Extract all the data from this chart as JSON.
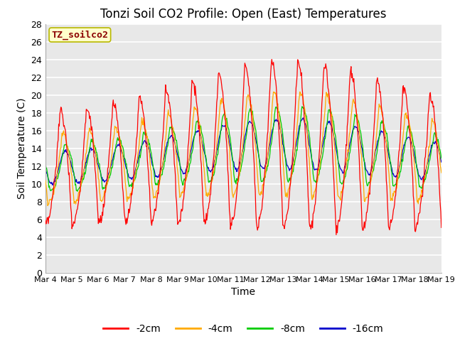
{
  "title": "Tonzi Soil CO2 Profile: Open (East) Temperatures",
  "xlabel": "Time",
  "ylabel": "Soil Temperature (C)",
  "ylim": [
    0,
    28
  ],
  "yticks": [
    0,
    2,
    4,
    6,
    8,
    10,
    12,
    14,
    16,
    18,
    20,
    22,
    24,
    26,
    28
  ],
  "x_labels": [
    "Mar 4",
    "Mar 5",
    "Mar 6",
    "Mar 7",
    "Mar 8",
    "Mar 9",
    "Mar 10",
    "Mar 11",
    "Mar 12",
    "Mar 13",
    "Mar 14",
    "Mar 15",
    "Mar 16",
    "Mar 17",
    "Mar 18",
    "Mar 19"
  ],
  "legend_label": "TZ_soilco2",
  "legend_bg": "#ffffcc",
  "legend_border": "#b8b800",
  "line_colors": [
    "#ff0000",
    "#ffaa00",
    "#00cc00",
    "#0000cc"
  ],
  "line_labels": [
    "-2cm",
    "-4cm",
    "-8cm",
    "-16cm"
  ],
  "plot_bg": "#e8e8e8",
  "grid_color": "#ffffff",
  "title_fontsize": 12,
  "axis_fontsize": 10,
  "tick_fontsize": 9
}
